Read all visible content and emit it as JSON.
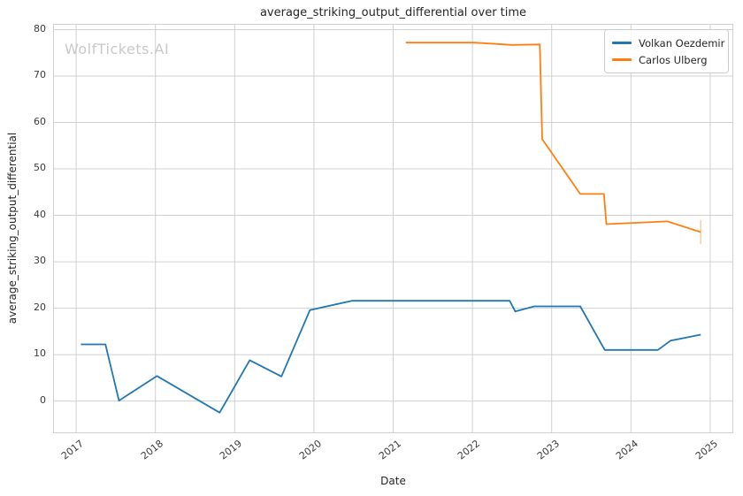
{
  "title": "average_striking_output_differential over time",
  "watermark": "WolfTickets.AI",
  "axes": {
    "x_label": "Date",
    "y_label": "average_striking_output_differential",
    "x_ticks": [
      2017,
      2018,
      2019,
      2020,
      2021,
      2022,
      2023,
      2024,
      2025
    ],
    "y_ticks": [
      0,
      10,
      20,
      30,
      40,
      50,
      60,
      70,
      80
    ]
  },
  "colors": {
    "blue": "#1f77b4",
    "orange": "#ff7f0e",
    "grid": "#d0d0d0",
    "text": "#262626",
    "tick_text": "#3a3a3a",
    "watermark": "#c9c9c9",
    "background": "#ffffff"
  },
  "chart_data": {
    "type": "line",
    "title": "average_striking_output_differential over time",
    "xlabel": "Date",
    "ylabel": "average_striking_output_differential",
    "xlim": [
      2016.72,
      2025.28
    ],
    "ylim": [
      -6.74,
      81.05
    ],
    "grid": true,
    "legend_position": "upper right",
    "x_units": "decimal_year",
    "series": [
      {
        "name": "Volkan Oezdemir",
        "color": "#1f77b4",
        "points": [
          [
            2017.06,
            12.2
          ],
          [
            2017.37,
            12.2
          ],
          [
            2017.54,
            0.1
          ],
          [
            2018.02,
            5.4
          ],
          [
            2018.81,
            -2.5
          ],
          [
            2019.19,
            8.8
          ],
          [
            2019.59,
            5.3
          ],
          [
            2019.95,
            19.6
          ],
          [
            2020.48,
            21.6
          ],
          [
            2022.47,
            21.6
          ],
          [
            2022.54,
            19.3
          ],
          [
            2022.78,
            20.4
          ],
          [
            2023.36,
            20.4
          ],
          [
            2023.67,
            11.0
          ],
          [
            2024.34,
            11.0
          ],
          [
            2024.5,
            13.0
          ],
          [
            2024.88,
            14.3
          ]
        ]
      },
      {
        "name": "Carlos Ulberg",
        "color": "#ff7f0e",
        "points": [
          [
            2021.16,
            77.2
          ],
          [
            2022.02,
            77.2
          ],
          [
            2022.5,
            76.7
          ],
          [
            2022.85,
            76.8
          ],
          [
            2022.88,
            56.4
          ],
          [
            2023.36,
            44.6
          ],
          [
            2023.66,
            44.6
          ],
          [
            2023.69,
            38.1
          ],
          [
            2024.46,
            38.7
          ],
          [
            2024.88,
            36.4
          ]
        ],
        "final_error_bar": 2.6
      }
    ]
  }
}
